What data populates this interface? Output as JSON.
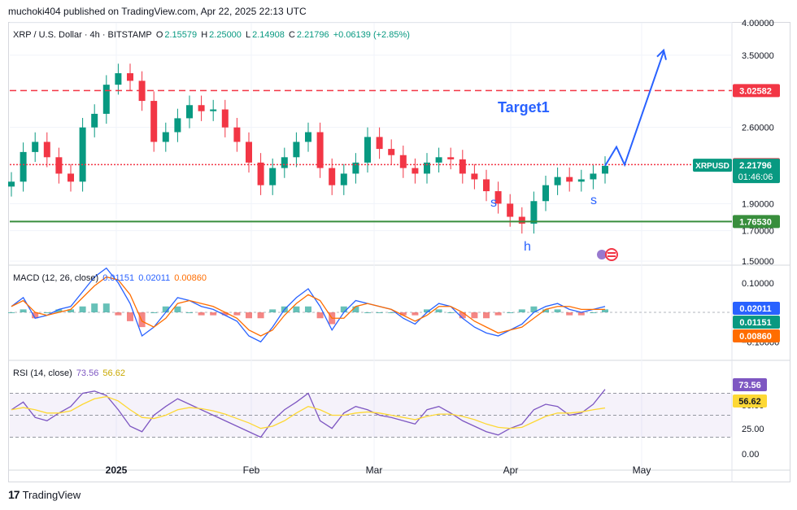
{
  "header": {
    "publisher": "muchoki404 published on TradingView.com, Apr 22, 2025 22:13 UTC"
  },
  "footer": {
    "brand": "TradingView"
  },
  "symbol_legend": {
    "name": "XRP / U.S. Dollar · 4h · BITSTAMP",
    "o_label": "O",
    "o": "2.15579",
    "h_label": "H",
    "h": "2.25000",
    "l_label": "L",
    "l": "2.14908",
    "c_label": "C",
    "c": "2.21796",
    "change": "+0.06139 (+2.85%)"
  },
  "macd_legend": {
    "title": "MACD (12, 26, close)",
    "v1": "0.01151",
    "v2": "0.02011",
    "v3": "0.00860"
  },
  "rsi_legend": {
    "title": "RSI (14, close)",
    "v1": "73.56",
    "v2": "56.62"
  },
  "annotations": {
    "target": "Target1",
    "s_left": "s",
    "h": "h",
    "s_right": "s"
  },
  "colors": {
    "up": "#089981",
    "down": "#f23645",
    "target_line": "#f23645",
    "support_line": "#388e3c",
    "arrow": "#2962ff",
    "macd": "#2962ff",
    "signal": "#ff6d00",
    "rsi": "#7e57c2",
    "rsi_ma": "#fdd835"
  },
  "chart_data": [
    {
      "type": "candlestick",
      "title": "XRP / U.S. Dollar · 4h · BITSTAMP",
      "x_ticks": [
        "2025",
        "Feb",
        "Mar",
        "Apr",
        "May"
      ],
      "y_ticks": [
        "1.50000",
        "1.70000",
        "1.90000",
        "2.60000",
        "3.50000",
        "4.00000"
      ],
      "y_scale": "log",
      "ylim": [
        1.48,
        4.0
      ],
      "series": [
        {
          "values": [
            2.08,
            2.35,
            2.45,
            2.3,
            2.15,
            2.08,
            2.6,
            2.75,
            3.1,
            3.25,
            3.15,
            2.9,
            2.45,
            2.55,
            2.7,
            2.85,
            2.78,
            2.8,
            2.6,
            2.45,
            2.25,
            2.05,
            2.2,
            2.3,
            2.45,
            2.55,
            2.2,
            2.05,
            2.15,
            2.25,
            2.5,
            2.38,
            2.32,
            2.2,
            2.15,
            2.25,
            2.3,
            2.28,
            2.15,
            2.1,
            2.0,
            1.9,
            1.8,
            1.75,
            1.92,
            2.05,
            2.12,
            2.08,
            2.1,
            2.15,
            2.22
          ]
        }
      ],
      "price_levels": [
        {
          "label": "3.02582",
          "value": 3.02582,
          "style": "dashed"
        },
        {
          "label": "2.23122",
          "value": 2.23122,
          "style": "dotted"
        },
        {
          "label": "1.76530",
          "value": 1.7653,
          "style": "solid"
        }
      ],
      "last_price": {
        "symbol": "XRPUSD",
        "value": "2.21796",
        "countdown": "01:46:06"
      },
      "projection": {
        "points": [
          2.22,
          2.4,
          2.23,
          3.55
        ]
      }
    },
    {
      "type": "line",
      "title": "MACD (12, 26, close)",
      "y_ticks": [
        "0.10000",
        "−0.10000"
      ],
      "series": [
        {
          "name": "MACD",
          "values": [
            0.02,
            0.05,
            -0.02,
            -0.01,
            0.01,
            0.02,
            0.07,
            0.12,
            0.15,
            0.1,
            0.03,
            -0.08,
            -0.05,
            0.0,
            0.05,
            0.04,
            0.02,
            0.01,
            -0.01,
            -0.03,
            -0.08,
            -0.1,
            -0.05,
            0.01,
            0.05,
            0.08,
            0.02,
            -0.06,
            0.0,
            0.04,
            0.03,
            0.02,
            0.01,
            -0.02,
            -0.04,
            0.0,
            0.03,
            0.02,
            -0.02,
            -0.05,
            -0.07,
            -0.08,
            -0.06,
            -0.04,
            0.0,
            0.02,
            0.03,
            0.01,
            0.0,
            0.01,
            0.02
          ]
        },
        {
          "name": "Signal",
          "values": [
            0.02,
            0.04,
            0.0,
            -0.01,
            0.0,
            0.01,
            0.05,
            0.09,
            0.12,
            0.11,
            0.06,
            -0.03,
            -0.05,
            -0.02,
            0.03,
            0.04,
            0.03,
            0.02,
            0.0,
            -0.02,
            -0.06,
            -0.08,
            -0.06,
            -0.01,
            0.03,
            0.06,
            0.04,
            -0.02,
            -0.02,
            0.02,
            0.03,
            0.02,
            0.01,
            -0.01,
            -0.03,
            -0.01,
            0.02,
            0.02,
            0.0,
            -0.03,
            -0.05,
            -0.07,
            -0.06,
            -0.05,
            -0.02,
            0.01,
            0.02,
            0.02,
            0.01,
            0.01,
            0.01
          ]
        }
      ],
      "markers": [
        {
          "label": "0.02011",
          "value": 0.02011
        },
        {
          "label": "0.01151",
          "value": 0.01151
        },
        {
          "label": "0.00860",
          "value": 0.0086
        }
      ]
    },
    {
      "type": "line",
      "title": "RSI (14, close)",
      "y_ticks": [
        "25.00",
        "50.00",
        "0.00"
      ],
      "ylim": [
        0,
        100
      ],
      "series": [
        {
          "name": "RSI",
          "values": [
            55,
            62,
            48,
            45,
            52,
            58,
            70,
            72,
            68,
            55,
            40,
            35,
            50,
            58,
            65,
            60,
            55,
            50,
            45,
            40,
            35,
            30,
            45,
            55,
            62,
            70,
            45,
            38,
            52,
            58,
            55,
            50,
            48,
            45,
            42,
            55,
            58,
            52,
            45,
            40,
            35,
            32,
            38,
            42,
            55,
            60,
            58,
            50,
            52,
            60,
            73.56
          ]
        },
        {
          "name": "RSI MA",
          "values": [
            55,
            57,
            55,
            52,
            52,
            54,
            60,
            65,
            67,
            63,
            55,
            48,
            47,
            50,
            55,
            57,
            56,
            54,
            51,
            47,
            43,
            38,
            40,
            45,
            52,
            58,
            55,
            50,
            50,
            52,
            53,
            52,
            50,
            48,
            46,
            49,
            51,
            51,
            49,
            46,
            42,
            39,
            38,
            39,
            44,
            49,
            52,
            52,
            53,
            55,
            56.62
          ]
        }
      ],
      "markers": [
        {
          "label": "73.56",
          "value": 73.56
        },
        {
          "label": "56.62",
          "value": 56.62
        }
      ]
    }
  ]
}
